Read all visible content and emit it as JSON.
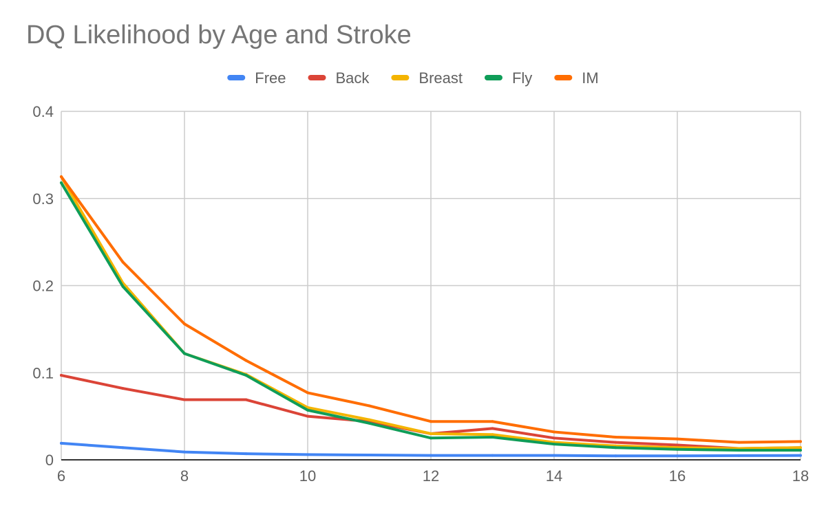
{
  "chart_data": {
    "type": "line",
    "title": "DQ Likelihood by Age and Stroke",
    "xlabel": "",
    "ylabel": "",
    "x": [
      6,
      7,
      8,
      9,
      10,
      11,
      12,
      13,
      14,
      15,
      16,
      17,
      18
    ],
    "xlim": [
      6,
      18
    ],
    "xticks": [
      "6",
      "8",
      "10",
      "12",
      "14",
      "16",
      "18"
    ],
    "ylim": [
      0,
      0.4
    ],
    "yticks": [
      "0",
      "0.1",
      "0.2",
      "0.3",
      "0.4"
    ],
    "grid": true,
    "legend_position": "top",
    "series": [
      {
        "name": "Free",
        "color": "#4285f4",
        "values": [
          0.019,
          0.014,
          0.009,
          0.007,
          0.006,
          0.0055,
          0.005,
          0.005,
          0.005,
          0.0045,
          0.0045,
          0.0048,
          0.005
        ]
      },
      {
        "name": "Back",
        "color": "#db4437",
        "values": [
          0.097,
          0.082,
          0.069,
          0.069,
          0.05,
          0.044,
          0.03,
          0.036,
          0.025,
          0.02,
          0.017,
          0.013,
          0.014
        ]
      },
      {
        "name": "Breast",
        "color": "#f4b400",
        "values": [
          0.325,
          0.203,
          0.122,
          0.098,
          0.06,
          0.046,
          0.03,
          0.029,
          0.02,
          0.016,
          0.014,
          0.013,
          0.014
        ]
      },
      {
        "name": "Fly",
        "color": "#0f9d58",
        "values": [
          0.318,
          0.199,
          0.122,
          0.097,
          0.057,
          0.042,
          0.025,
          0.026,
          0.018,
          0.014,
          0.012,
          0.011,
          0.011
        ]
      },
      {
        "name": "IM",
        "color": "#ff6d00",
        "values": [
          0.325,
          0.227,
          0.156,
          0.114,
          0.077,
          0.062,
          0.044,
          0.044,
          0.032,
          0.026,
          0.024,
          0.02,
          0.021
        ]
      }
    ]
  }
}
